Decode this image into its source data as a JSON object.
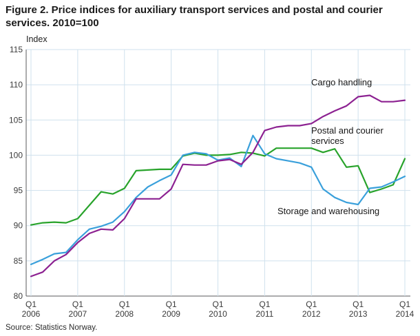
{
  "header": {
    "title_lines": [
      "Figure 2. Price indices for auxiliary transport services and postal and courier",
      "services. 2010=100"
    ]
  },
  "footer": {
    "source": "Source: Statistics Norway."
  },
  "annotations": {
    "cargo": "Cargo handling",
    "postal": "Postal and courier services",
    "storage": "Storage and warehousing"
  },
  "chart_data": {
    "type": "line",
    "title": "Figure 2. Price indices for auxiliary transport services and postal and courier services. 2010=100",
    "ylabel": "Index",
    "ylim": [
      80,
      115
    ],
    "yticks": [
      80,
      85,
      90,
      95,
      100,
      105,
      110,
      115
    ],
    "grid": true,
    "x_tick_label_top": "Q1",
    "x_years": [
      "2006",
      "2007",
      "2008",
      "2009",
      "2010",
      "2011",
      "2012",
      "2013",
      "2014"
    ],
    "points_per_year": 4,
    "legend_position": "inline-annotations",
    "colors": {
      "grid": "#cfe1ed",
      "axis": "#58595b"
    },
    "series": [
      {
        "name": "Cargo handling",
        "color": "#8c2191",
        "values": [
          82.8,
          83.4,
          85.0,
          85.9,
          87.6,
          88.9,
          89.5,
          89.4,
          91.0,
          93.8,
          93.8,
          93.8,
          95.2,
          98.7,
          98.6,
          98.6,
          99.2,
          99.4,
          98.7,
          100.4,
          103.5,
          104.0,
          104.2,
          104.2,
          104.5,
          105.5,
          106.3,
          107.0,
          108.3,
          108.5,
          107.6,
          107.6,
          107.8
        ]
      },
      {
        "name": "Postal and courier services",
        "color": "#28a32b",
        "values": [
          90.1,
          90.4,
          90.5,
          90.4,
          91.0,
          92.9,
          94.8,
          94.5,
          95.3,
          97.8,
          97.9,
          98.0,
          98.0,
          99.9,
          100.3,
          100.0,
          100.0,
          100.1,
          100.4,
          100.3,
          99.9,
          101.0,
          101.0,
          101.0,
          101.0,
          100.4,
          100.9,
          98.3,
          98.5,
          94.7,
          95.2,
          95.8,
          99.5
        ]
      },
      {
        "name": "Storage and warehousing",
        "color": "#3aa0db",
        "values": [
          84.5,
          85.2,
          86.0,
          86.2,
          88.0,
          89.5,
          89.9,
          90.5,
          92.0,
          94.0,
          95.5,
          96.4,
          97.2,
          100.0,
          100.4,
          100.2,
          99.3,
          99.6,
          98.4,
          102.8,
          100.2,
          99.5,
          99.2,
          98.9,
          98.3,
          95.2,
          94.0,
          93.3,
          93.0,
          95.3,
          95.5,
          96.2,
          97.0
        ]
      }
    ]
  }
}
